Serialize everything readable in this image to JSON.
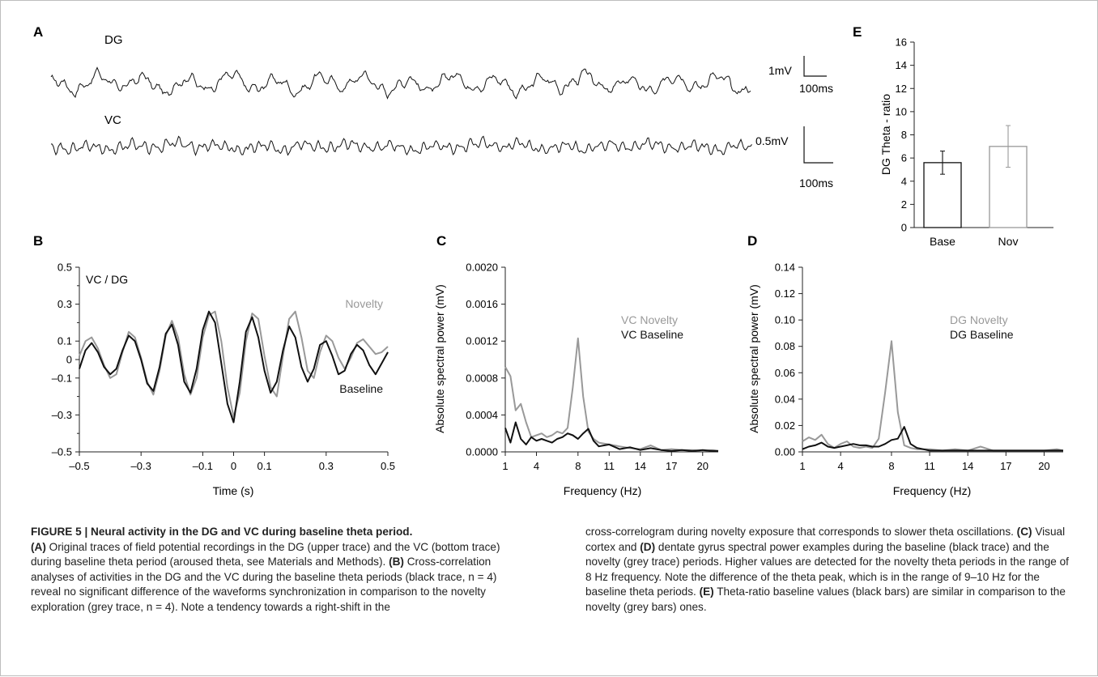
{
  "panels": {
    "A": {
      "label": "A",
      "dg_label": "DG",
      "vc_label": "VC",
      "dg_scale_v": "1mV",
      "dg_scale_t": "100ms",
      "vc_scale_v": "0.5mV",
      "vc_scale_t": "100ms"
    },
    "B": {
      "label": "B"
    },
    "C": {
      "label": "C"
    },
    "D": {
      "label": "D"
    },
    "E": {
      "label": "E"
    }
  },
  "colors": {
    "baseline": "#111111",
    "novelty": "#999999",
    "axis": "#222222"
  },
  "chart_data": [
    {
      "id": "B",
      "type": "line",
      "title": "VC / DG",
      "xlabel": "Time (s)",
      "ylabel": "",
      "xlim": [
        -0.5,
        0.5
      ],
      "ylim": [
        -0.5,
        0.5
      ],
      "xticks": [
        "-0.5",
        "-0.3",
        "-0.1",
        "0",
        "0.1",
        "0.3",
        "0.5"
      ],
      "xtick_values": [
        -0.5,
        -0.3,
        -0.1,
        0,
        0.1,
        0.3,
        0.5
      ],
      "yticks": [
        "0.5",
        "0.3",
        "0.1",
        "0",
        "-0.1",
        "-0.3",
        "-0.5"
      ],
      "ytick_values": [
        0.5,
        0.3,
        0.1,
        0,
        -0.1,
        -0.3,
        -0.5
      ],
      "series": [
        {
          "name": "Novelty",
          "color": "#999999",
          "x": [
            -0.5,
            -0.48,
            -0.46,
            -0.44,
            -0.42,
            -0.4,
            -0.38,
            -0.36,
            -0.34,
            -0.32,
            -0.3,
            -0.28,
            -0.26,
            -0.24,
            -0.22,
            -0.2,
            -0.18,
            -0.16,
            -0.14,
            -0.12,
            -0.1,
            -0.08,
            -0.06,
            -0.04,
            -0.02,
            0,
            0.02,
            0.04,
            0.06,
            0.08,
            0.1,
            0.12,
            0.14,
            0.16,
            0.18,
            0.2,
            0.22,
            0.24,
            0.26,
            0.28,
            0.3,
            0.32,
            0.34,
            0.36,
            0.38,
            0.4,
            0.42,
            0.44,
            0.46,
            0.48,
            0.5
          ],
          "y": [
            0.02,
            0.1,
            0.12,
            0.06,
            -0.03,
            -0.1,
            -0.08,
            0.04,
            0.15,
            0.12,
            0.01,
            -0.12,
            -0.19,
            -0.06,
            0.13,
            0.21,
            0.12,
            -0.08,
            -0.19,
            -0.1,
            0.12,
            0.24,
            0.26,
            0.1,
            -0.15,
            -0.31,
            -0.18,
            0.1,
            0.25,
            0.22,
            0.02,
            -0.15,
            -0.2,
            0.02,
            0.22,
            0.26,
            0.12,
            -0.06,
            -0.1,
            0.04,
            0.13,
            0.1,
            0.01,
            -0.05,
            0.01,
            0.09,
            0.11,
            0.07,
            0.03,
            0.04,
            0.07
          ]
        },
        {
          "name": "Baseline",
          "color": "#111111",
          "x": [
            -0.5,
            -0.48,
            -0.46,
            -0.44,
            -0.42,
            -0.4,
            -0.38,
            -0.36,
            -0.34,
            -0.32,
            -0.3,
            -0.28,
            -0.26,
            -0.24,
            -0.22,
            -0.2,
            -0.18,
            -0.16,
            -0.14,
            -0.12,
            -0.1,
            -0.08,
            -0.06,
            -0.04,
            -0.02,
            0,
            0.02,
            0.04,
            0.06,
            0.08,
            0.1,
            0.12,
            0.14,
            0.16,
            0.18,
            0.2,
            0.22,
            0.24,
            0.26,
            0.28,
            0.3,
            0.32,
            0.34,
            0.36,
            0.38,
            0.4,
            0.42,
            0.44,
            0.46,
            0.48,
            0.5
          ],
          "y": [
            -0.05,
            0.05,
            0.09,
            0.04,
            -0.04,
            -0.08,
            -0.05,
            0.05,
            0.13,
            0.1,
            0.0,
            -0.13,
            -0.17,
            -0.04,
            0.14,
            0.19,
            0.08,
            -0.12,
            -0.18,
            -0.05,
            0.16,
            0.26,
            0.2,
            -0.02,
            -0.24,
            -0.34,
            -0.12,
            0.15,
            0.23,
            0.12,
            -0.06,
            -0.18,
            -0.12,
            0.05,
            0.18,
            0.12,
            -0.04,
            -0.12,
            -0.05,
            0.08,
            0.1,
            0.02,
            -0.08,
            -0.06,
            0.03,
            0.08,
            0.05,
            -0.03,
            -0.08,
            -0.02,
            0.04
          ]
        }
      ]
    },
    {
      "id": "C",
      "type": "line",
      "xlabel": "Frequency (Hz)",
      "ylabel": "Absolute spectral power (mV)",
      "xlim": [
        1,
        21.5
      ],
      "ylim": [
        0,
        0.002
      ],
      "xticks": [
        "1",
        "4",
        "8",
        "11",
        "14",
        "17",
        "20"
      ],
      "xtick_values": [
        1,
        4,
        8,
        11,
        14,
        17,
        20
      ],
      "yticks": [
        "0.0020",
        "0.0016",
        "0.0012",
        "0.0008",
        "0.0004",
        "0.0000"
      ],
      "ytick_values": [
        0.002,
        0.0016,
        0.0012,
        0.0008,
        0.0004,
        0
      ],
      "series": [
        {
          "name": "VC Novelty",
          "color": "#999999",
          "x": [
            1,
            1.5,
            2,
            2.5,
            3,
            3.5,
            4,
            4.5,
            5,
            5.5,
            6,
            6.5,
            7,
            7.5,
            8,
            8.5,
            9,
            9.5,
            10,
            11,
            12,
            13,
            14,
            15,
            16,
            17,
            18,
            19,
            20,
            21,
            21.5
          ],
          "y": [
            0.00092,
            0.00082,
            0.00045,
            0.00052,
            0.00032,
            0.00016,
            0.00018,
            0.0002,
            0.00016,
            0.00018,
            0.00022,
            0.0002,
            0.00026,
            0.0007,
            0.00123,
            0.0006,
            0.00022,
            0.00014,
            0.0001,
            8e-05,
            6e-05,
            4e-05,
            3e-05,
            7e-05,
            2e-05,
            3e-05,
            2e-05,
            2e-05,
            1e-05,
            2e-05,
            1e-05
          ]
        },
        {
          "name": "VC Baseline",
          "color": "#111111",
          "x": [
            1,
            1.5,
            2,
            2.5,
            3,
            3.5,
            4,
            4.5,
            5,
            5.5,
            6,
            6.5,
            7,
            7.5,
            8,
            8.5,
            9,
            9.5,
            10,
            11,
            12,
            13,
            14,
            15,
            16,
            17,
            18,
            19,
            20,
            21,
            21.5
          ],
          "y": [
            0.00026,
            0.0001,
            0.00032,
            0.00014,
            8e-05,
            0.00016,
            0.00012,
            0.00014,
            0.00012,
            0.0001,
            0.00014,
            0.00016,
            0.0002,
            0.00018,
            0.00014,
            0.0002,
            0.00025,
            0.00012,
            6e-05,
            8e-05,
            3e-05,
            5e-05,
            2e-05,
            4e-05,
            2e-05,
            1e-05,
            2e-05,
            1e-05,
            2e-05,
            1e-05,
            1e-05
          ]
        }
      ]
    },
    {
      "id": "D",
      "type": "line",
      "xlabel": "Frequency (Hz)",
      "ylabel": "Absolute spectral power (mV)",
      "xlim": [
        1,
        21.5
      ],
      "ylim": [
        0,
        0.14
      ],
      "xticks": [
        "1",
        "4",
        "8",
        "11",
        "14",
        "17",
        "20"
      ],
      "xtick_values": [
        1,
        4,
        8,
        11,
        14,
        17,
        20
      ],
      "yticks": [
        "0.14",
        "0.12",
        "0.10",
        "0.08",
        "0.06",
        "0.04",
        "0.02",
        "0.00"
      ],
      "ytick_values": [
        0.14,
        0.12,
        0.1,
        0.08,
        0.06,
        0.04,
        0.02,
        0
      ],
      "series": [
        {
          "name": "DG Novelty",
          "color": "#999999",
          "x": [
            1,
            1.5,
            2,
            2.5,
            3,
            3.5,
            4,
            4.5,
            5,
            5.5,
            6,
            6.5,
            7,
            7.5,
            8,
            8.5,
            9,
            9.5,
            10,
            11,
            12,
            13,
            14,
            15,
            16,
            17,
            18,
            19,
            20,
            21,
            21.5
          ],
          "y": [
            0.008,
            0.011,
            0.009,
            0.013,
            0.006,
            0.003,
            0.006,
            0.008,
            0.004,
            0.003,
            0.004,
            0.003,
            0.01,
            0.045,
            0.084,
            0.03,
            0.005,
            0.003,
            0.002,
            0.002,
            0.001,
            0.002,
            0.001,
            0.004,
            0.001,
            0.001,
            0.001,
            0.001,
            0.001,
            0.002,
            0.001
          ]
        },
        {
          "name": "DG Baseline",
          "color": "#111111",
          "x": [
            1,
            1.5,
            2,
            2.5,
            3,
            3.5,
            4,
            4.5,
            5,
            5.5,
            6,
            6.5,
            7,
            7.5,
            8,
            8.5,
            9,
            9.5,
            10,
            11,
            12,
            13,
            14,
            15,
            16,
            17,
            18,
            19,
            20,
            21,
            21.5
          ],
          "y": [
            0.002,
            0.004,
            0.005,
            0.007,
            0.004,
            0.003,
            0.004,
            0.005,
            0.006,
            0.005,
            0.005,
            0.004,
            0.004,
            0.006,
            0.009,
            0.01,
            0.019,
            0.006,
            0.003,
            0.001,
            0.001,
            0.001,
            0.001,
            0.001,
            0.001,
            0.001,
            0.001,
            0.001,
            0.001,
            0.001,
            0.001
          ]
        }
      ]
    },
    {
      "id": "E",
      "type": "bar",
      "ylabel": "DG Theta - ratio",
      "categories": [
        "Base",
        "Nov"
      ],
      "values": [
        5.6,
        7.0
      ],
      "errors": [
        1.0,
        1.8
      ],
      "colors": [
        "#111111",
        "#999999"
      ],
      "ylim": [
        0,
        16
      ],
      "yticks": [
        "16",
        "14",
        "12",
        "10",
        "8",
        "6",
        "4",
        "2",
        "0"
      ],
      "ytick_values": [
        16,
        14,
        12,
        10,
        8,
        6,
        4,
        2,
        0
      ]
    }
  ],
  "caption": {
    "title": "FIGURE 5 | Neural activity in the DG and VC during baseline theta period.",
    "a_tag": "(A)",
    "a_text": " Original traces of field potential recordings in the DG (upper trace) and the VC (bottom trace) during baseline theta period (aroused theta, see Materials and Methods). ",
    "b_tag": "(B)",
    "b_text": " Cross-correlation analyses of activities in the DG and the VC during the baseline theta periods (black trace, n = 4) reveal no significant difference of the waveforms synchronization in comparison to the novelty exploration (grey trace, n = 4). Note a tendency towards a right-shift in the",
    "right_text1": "cross-correlogram during novelty exposure that corresponds to slower theta oscillations. ",
    "c_tag": "(C)",
    "c_text": " Visual cortex and ",
    "d_tag": "(D)",
    "d_text": " dentate gyrus spectral power examples during the baseline (black trace) and the novelty (grey trace) periods. Higher values are detected for the novelty theta periods in the range of 8 Hz frequency. Note the difference of the theta peak, which is in the range of 9–10 Hz for the baseline theta periods. ",
    "e_tag": "(E)",
    "e_text": " Theta-ratio baseline values (black bars) are similar in comparison to the novelty (grey bars) ones."
  }
}
